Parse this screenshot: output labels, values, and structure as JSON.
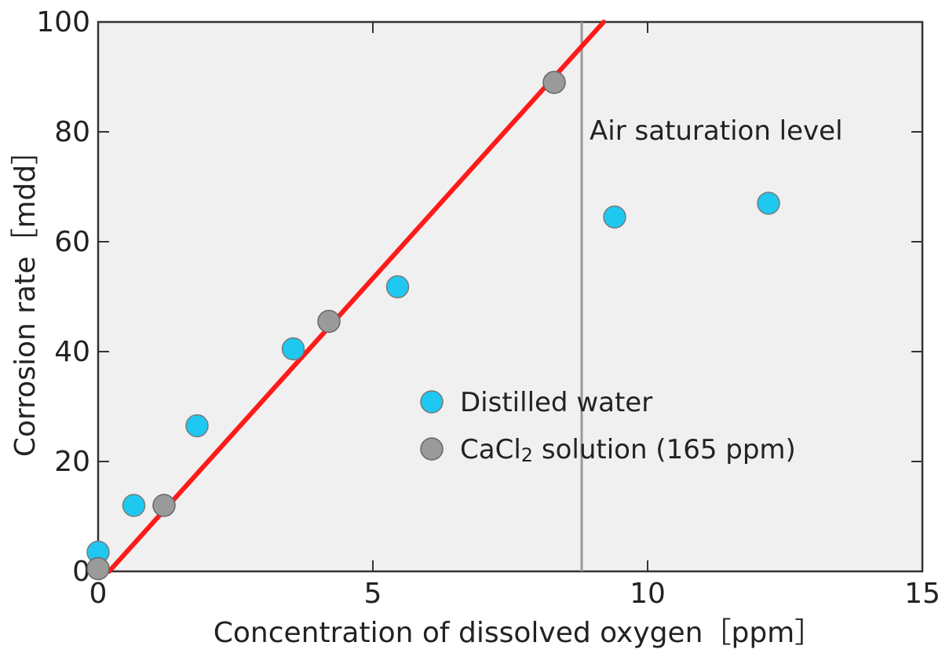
{
  "chart_data": {
    "type": "scatter",
    "title": "",
    "xlabel": "Concentration of dissolved oxygen［ppm］",
    "ylabel": "Corrosion rate［mdd］",
    "xlim": [
      0,
      15
    ],
    "ylim": [
      0,
      100
    ],
    "xticks": [
      0,
      5,
      10,
      15
    ],
    "yticks": [
      0,
      20,
      40,
      60,
      80,
      100
    ],
    "grid": false,
    "legend_position": "center-right",
    "series": [
      {
        "name": "Distilled water",
        "color": "#1ec8f0",
        "points": [
          {
            "x": 0.0,
            "y": 3.5
          },
          {
            "x": 0.65,
            "y": 12
          },
          {
            "x": 1.8,
            "y": 26.5
          },
          {
            "x": 3.55,
            "y": 40.5
          },
          {
            "x": 5.45,
            "y": 51.8
          },
          {
            "x": 9.4,
            "y": 64.5
          },
          {
            "x": 12.2,
            "y": 67
          }
        ]
      },
      {
        "name": "CaCl2 solution (165 ppm)",
        "legend_parts": {
          "prefix": "CaCl",
          "sub": "2",
          "suffix": " solution (165 ppm)"
        },
        "color": "#9a9a9a",
        "points": [
          {
            "x": 0.0,
            "y": 0.5
          },
          {
            "x": 1.2,
            "y": 12
          },
          {
            "x": 4.2,
            "y": 45.5
          },
          {
            "x": 8.3,
            "y": 89
          }
        ]
      }
    ],
    "fit_line": {
      "color": "#ff1a1a",
      "x": [
        0.2,
        9.2
      ],
      "y": [
        0,
        100
      ]
    },
    "reference_line": {
      "x": 8.8,
      "label": "Air saturation level",
      "color": "#999999"
    }
  }
}
